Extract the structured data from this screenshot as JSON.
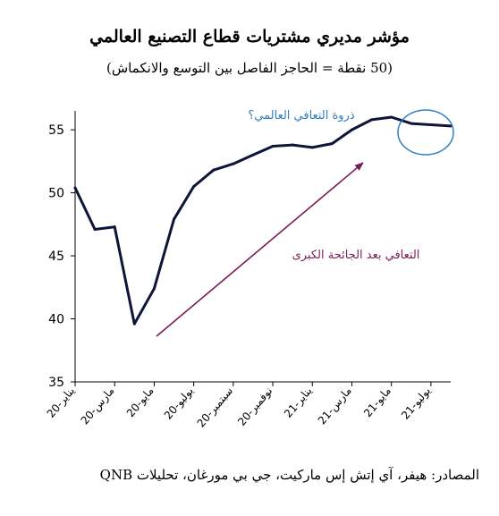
{
  "title": "مؤشر مديري مشتريات قطاع التصنيع العالمي",
  "subtitle": "(50 نقطة = الحاجز الفاصل بين التوسع والانكماش)",
  "source": "المصادر: هيفر، آي إتش إس ماركيت، جي بي مورغان، تحليلات QNB",
  "colors": {
    "line": "#0d1538",
    "arrow": "#7b1c56",
    "circle": "#2f7fc1",
    "peak_text": "#2f7fc1",
    "recovery_text": "#7b1c56",
    "axis": "#000000"
  },
  "annotations": {
    "peak": "ذروة التعافي العالمي؟",
    "recovery": "التعافي بعد الجائحة الكبرى"
  },
  "chart_data": {
    "type": "line",
    "title": "مؤشر مديري مشتريات قطاع التصنيع العالمي",
    "subtitle": "(50 نقطة = الحاجز الفاصل بين التوسع والانكماش)",
    "xlabel": "",
    "ylabel": "",
    "ylim": [
      35,
      56.5
    ],
    "yticks": [
      35,
      40,
      45,
      50,
      55
    ],
    "grid": false,
    "legend": "none",
    "x": [
      "يناير-20",
      "فبراير-20",
      "مارس-20",
      "أبريل-20",
      "مايو-20",
      "يونيو-20",
      "يوليو-20",
      "أغسطس-20",
      "سبتمبر-20",
      "أكتوبر-20",
      "نوفمبر-20",
      "ديسمبر-20",
      "يناير-21",
      "فبراير-21",
      "مارس-21",
      "أبريل-21",
      "مايو-21",
      "يونيو-21",
      "يوليو-21",
      "أغسطس-21"
    ],
    "xtick_labels": [
      "يناير-20",
      "مارس-20",
      "مايو-20",
      "يوليو-20",
      "سبتمبر-20",
      "نوفمبر-20",
      "يناير-21",
      "مارس-21",
      "مايو-21",
      "يوليو-21"
    ],
    "series": [
      {
        "values": [
          50.4,
          47.1,
          47.3,
          39.6,
          42.4,
          47.9,
          50.5,
          51.8,
          52.3,
          53.0,
          53.7,
          53.8,
          53.6,
          53.9,
          55.0,
          55.8,
          56.0,
          55.5,
          55.4,
          55.3
        ]
      }
    ]
  }
}
